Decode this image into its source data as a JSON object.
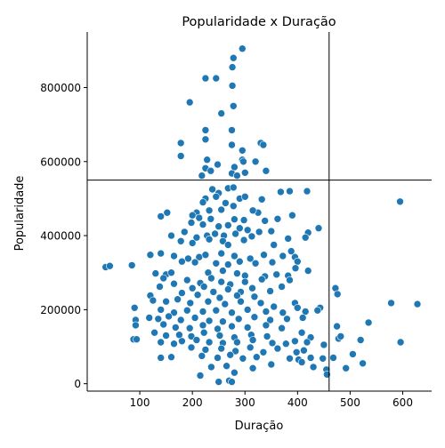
{
  "chart_data": {
    "type": "scatter",
    "title": "Popularidade x Duração",
    "xlabel": "Duração",
    "ylabel": "Popularidade",
    "xlim": [
      0,
      655
    ],
    "ylim": [
      -20000,
      950000
    ],
    "xticks": [
      100,
      200,
      300,
      400,
      500,
      600
    ],
    "yticks": [
      0,
      200000,
      400000,
      600000,
      800000
    ],
    "ref_lines": {
      "vertical_x": 460,
      "horizontal_y": 550000
    },
    "point_color": "#1f77b4",
    "grid": false,
    "spines": "left-bottom",
    "points": [
      [
        295,
        905000
      ],
      [
        278,
        880000
      ],
      [
        276,
        855000
      ],
      [
        225,
        825000
      ],
      [
        245,
        825000
      ],
      [
        276,
        805000
      ],
      [
        195,
        760000
      ],
      [
        278,
        750000
      ],
      [
        255,
        730000
      ],
      [
        275,
        685000
      ],
      [
        225,
        685000
      ],
      [
        225,
        660000
      ],
      [
        178,
        650000
      ],
      [
        330,
        650000
      ],
      [
        335,
        645000
      ],
      [
        275,
        645000
      ],
      [
        295,
        630000
      ],
      [
        228,
        605000
      ],
      [
        295,
        605000
      ],
      [
        297,
        600000
      ],
      [
        320,
        600000
      ],
      [
        178,
        615000
      ],
      [
        248,
        592000
      ],
      [
        280,
        585000
      ],
      [
        340,
        575000
      ],
      [
        225,
        582000
      ],
      [
        235,
        575000
      ],
      [
        300,
        570000
      ],
      [
        275,
        568000
      ],
      [
        285,
        562000
      ],
      [
        218,
        562000
      ],
      [
        385,
        520000
      ],
      [
        418,
        520000
      ],
      [
        368,
        518000
      ],
      [
        595,
        492000
      ],
      [
        238,
        525000
      ],
      [
        268,
        528000
      ],
      [
        278,
        530000
      ],
      [
        250,
        515000
      ],
      [
        225,
        500000
      ],
      [
        245,
        505000
      ],
      [
        290,
        500000
      ],
      [
        300,
        505000
      ],
      [
        332,
        498000
      ],
      [
        220,
        490000
      ],
      [
        263,
        488000
      ],
      [
        278,
        480000
      ],
      [
        255,
        470000
      ],
      [
        232,
        468000
      ],
      [
        208,
        462000
      ],
      [
        140,
        452000
      ],
      [
        152,
        462000
      ],
      [
        200,
        455000
      ],
      [
        213,
        448000
      ],
      [
        235,
        445000
      ],
      [
        280,
        444000
      ],
      [
        298,
        442000
      ],
      [
        338,
        440000
      ],
      [
        362,
        445000
      ],
      [
        390,
        455000
      ],
      [
        325,
        462000
      ],
      [
        315,
        468000
      ],
      [
        198,
        435000
      ],
      [
        220,
        430000
      ],
      [
        250,
        425000
      ],
      [
        268,
        428000
      ],
      [
        290,
        420000
      ],
      [
        305,
        415000
      ],
      [
        327,
        410000
      ],
      [
        350,
        412000
      ],
      [
        440,
        420000
      ],
      [
        420,
        408000
      ],
      [
        415,
        395000
      ],
      [
        185,
        410000
      ],
      [
        228,
        400000
      ],
      [
        243,
        405000
      ],
      [
        260,
        400000
      ],
      [
        282,
        405000
      ],
      [
        313,
        398000
      ],
      [
        382,
        392000
      ],
      [
        160,
        400000
      ],
      [
        208,
        395000
      ],
      [
        232,
        390000
      ],
      [
        258,
        385000
      ],
      [
        298,
        388000
      ],
      [
        178,
        385000
      ],
      [
        200,
        380000
      ],
      [
        355,
        375000
      ],
      [
        268,
        375000
      ],
      [
        120,
        348000
      ],
      [
        140,
        352000
      ],
      [
        165,
        345000
      ],
      [
        192,
        338000
      ],
      [
        213,
        342000
      ],
      [
        225,
        348000
      ],
      [
        255,
        352000
      ],
      [
        280,
        345000
      ],
      [
        310,
        338000
      ],
      [
        336,
        348000
      ],
      [
        372,
        345000
      ],
      [
        395,
        342000
      ],
      [
        400,
        330000
      ],
      [
        388,
        358000
      ],
      [
        180,
        330000
      ],
      [
        205,
        328000
      ],
      [
        245,
        325000
      ],
      [
        268,
        322000
      ],
      [
        290,
        330000
      ],
      [
        320,
        325000
      ],
      [
        352,
        328000
      ],
      [
        396,
        312000
      ],
      [
        420,
        305000
      ],
      [
        130,
        298000
      ],
      [
        150,
        295000
      ],
      [
        160,
        300000
      ],
      [
        230,
        300000
      ],
      [
        258,
        305000
      ],
      [
        285,
        298000
      ],
      [
        300,
        292000
      ],
      [
        338,
        290000
      ],
      [
        360,
        295000
      ],
      [
        382,
        292000
      ],
      [
        35,
        315000
      ],
      [
        43,
        318000
      ],
      [
        85,
        320000
      ],
      [
        190,
        280000
      ],
      [
        215,
        272000
      ],
      [
        236,
        285000
      ],
      [
        255,
        275000
      ],
      [
        272,
        268000
      ],
      [
        300,
        275000
      ],
      [
        332,
        282000
      ],
      [
        385,
        280000
      ],
      [
        145,
        285000
      ],
      [
        165,
        270000
      ],
      [
        138,
        262000
      ],
      [
        200,
        258000
      ],
      [
        222,
        262000
      ],
      [
        240,
        248000
      ],
      [
        268,
        255000
      ],
      [
        292,
        248000
      ],
      [
        314,
        258000
      ],
      [
        348,
        250000
      ],
      [
        370,
        262000
      ],
      [
        472,
        258000
      ],
      [
        476,
        242000
      ],
      [
        180,
        245000
      ],
      [
        210,
        240000
      ],
      [
        252,
        232000
      ],
      [
        285,
        238000
      ],
      [
        318,
        235000
      ],
      [
        120,
        238000
      ],
      [
        125,
        225000
      ],
      [
        150,
        222000
      ],
      [
        172,
        228000
      ],
      [
        196,
        218000
      ],
      [
        230,
        222000
      ],
      [
        262,
        215000
      ],
      [
        292,
        222000
      ],
      [
        330,
        218000
      ],
      [
        395,
        218000
      ],
      [
        355,
        208000
      ],
      [
        578,
        218000
      ],
      [
        628,
        215000
      ],
      [
        90,
        205000
      ],
      [
        140,
        200000
      ],
      [
        165,
        192000
      ],
      [
        190,
        198000
      ],
      [
        220,
        195000
      ],
      [
        245,
        198000
      ],
      [
        275,
        192000
      ],
      [
        305,
        200000
      ],
      [
        340,
        195000
      ],
      [
        372,
        192000
      ],
      [
        400,
        205000
      ],
      [
        415,
        195000
      ],
      [
        443,
        205000
      ],
      [
        438,
        198000
      ],
      [
        92,
        172000
      ],
      [
        118,
        178000
      ],
      [
        135,
        175000
      ],
      [
        155,
        182000
      ],
      [
        178,
        172000
      ],
      [
        205,
        178000
      ],
      [
        232,
        170000
      ],
      [
        258,
        168000
      ],
      [
        288,
        175000
      ],
      [
        318,
        180000
      ],
      [
        348,
        172000
      ],
      [
        380,
        175000
      ],
      [
        410,
        178000
      ],
      [
        535,
        165000
      ],
      [
        92,
        158000
      ],
      [
        145,
        160000
      ],
      [
        168,
        152000
      ],
      [
        195,
        150000
      ],
      [
        220,
        158000
      ],
      [
        248,
        148000
      ],
      [
        275,
        155000
      ],
      [
        305,
        152000
      ],
      [
        340,
        158000
      ],
      [
        370,
        150000
      ],
      [
        475,
        155000
      ],
      [
        128,
        138000
      ],
      [
        150,
        130000
      ],
      [
        175,
        132000
      ],
      [
        198,
        128000
      ],
      [
        222,
        138000
      ],
      [
        252,
        130000
      ],
      [
        280,
        125000
      ],
      [
        312,
        132000
      ],
      [
        342,
        128000
      ],
      [
        408,
        138000
      ],
      [
        425,
        125000
      ],
      [
        88,
        120000
      ],
      [
        94,
        120000
      ],
      [
        140,
        112000
      ],
      [
        165,
        108000
      ],
      [
        180,
        115000
      ],
      [
        208,
        118000
      ],
      [
        232,
        112000
      ],
      [
        258,
        110000
      ],
      [
        285,
        112000
      ],
      [
        315,
        118000
      ],
      [
        352,
        110000
      ],
      [
        378,
        108000
      ],
      [
        395,
        115000
      ],
      [
        418,
        112000
      ],
      [
        450,
        105000
      ],
      [
        478,
        122000
      ],
      [
        482,
        128000
      ],
      [
        520,
        118000
      ],
      [
        596,
        112000
      ],
      [
        198,
        98000
      ],
      [
        225,
        92000
      ],
      [
        255,
        95000
      ],
      [
        282,
        88000
      ],
      [
        310,
        98000
      ],
      [
        335,
        85000
      ],
      [
        362,
        95000
      ],
      [
        412,
        90000
      ],
      [
        398,
        85000
      ],
      [
        140,
        70000
      ],
      [
        160,
        72000
      ],
      [
        218,
        75000
      ],
      [
        248,
        70000
      ],
      [
        272,
        78000
      ],
      [
        296,
        68000
      ],
      [
        322,
        72000
      ],
      [
        385,
        68000
      ],
      [
        402,
        65000
      ],
      [
        425,
        70000
      ],
      [
        448,
        68000
      ],
      [
        468,
        70000
      ],
      [
        505,
        80000
      ],
      [
        524,
        55000
      ],
      [
        236,
        45000
      ],
      [
        265,
        48000
      ],
      [
        315,
        42000
      ],
      [
        350,
        52000
      ],
      [
        408,
        58000
      ],
      [
        430,
        45000
      ],
      [
        455,
        38000
      ],
      [
        456,
        25000
      ],
      [
        492,
        42000
      ],
      [
        215,
        22000
      ],
      [
        280,
        30000
      ],
      [
        250,
        5000
      ],
      [
        270,
        8000
      ],
      [
        275,
        5000
      ]
    ]
  }
}
